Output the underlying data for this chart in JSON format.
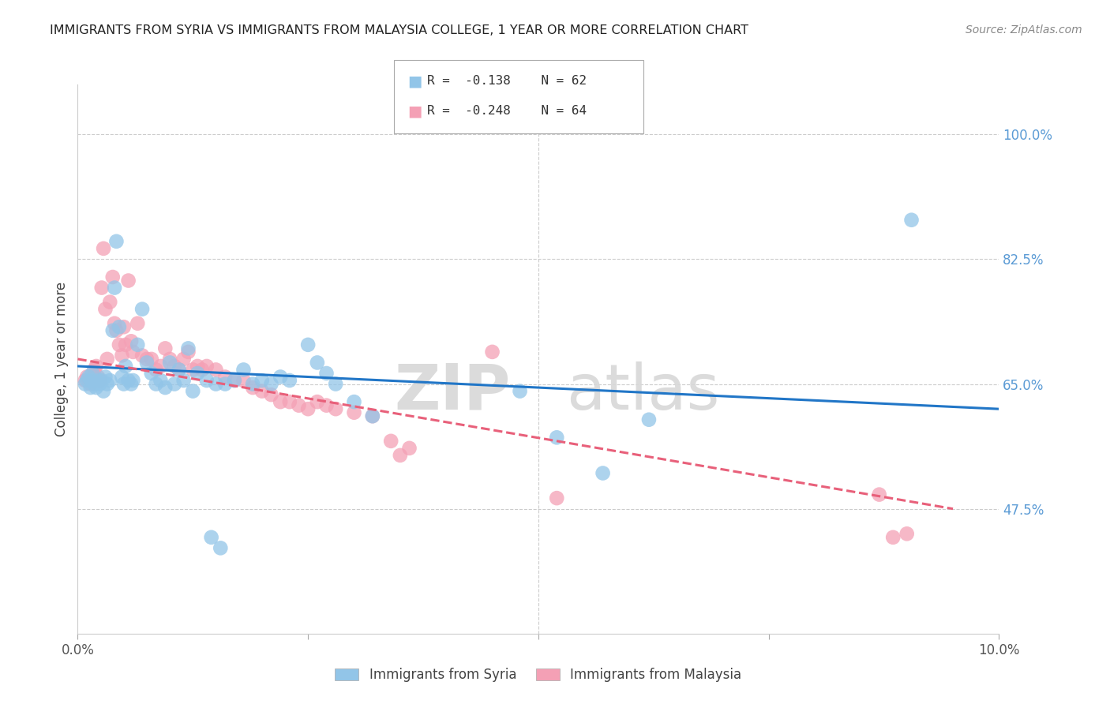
{
  "title": "IMMIGRANTS FROM SYRIA VS IMMIGRANTS FROM MALAYSIA COLLEGE, 1 YEAR OR MORE CORRELATION CHART",
  "source": "Source: ZipAtlas.com",
  "ylabel": "College, 1 year or more",
  "xlim": [
    0.0,
    10.0
  ],
  "ylim": [
    30.0,
    107.0
  ],
  "yticks": [
    47.5,
    65.0,
    82.5,
    100.0
  ],
  "xticks": [
    0.0,
    2.5,
    5.0,
    7.5,
    10.0
  ],
  "xtick_labels": [
    "0.0%",
    "",
    "",
    "",
    "10.0%"
  ],
  "ytick_labels": [
    "47.5%",
    "65.0%",
    "82.5%",
    "100.0%"
  ],
  "legend_r_syria": "-0.138",
  "legend_n_syria": "62",
  "legend_r_malaysia": "-0.248",
  "legend_n_malaysia": "64",
  "color_syria": "#92C5E8",
  "color_malaysia": "#F4A0B5",
  "color_line_syria": "#2176C7",
  "color_line_malaysia": "#E8607A",
  "color_ytick": "#5B9BD5",
  "watermark_zip": "ZIP",
  "watermark_atlas": "atlas",
  "syria_x": [
    0.08,
    0.1,
    0.12,
    0.14,
    0.15,
    0.16,
    0.18,
    0.2,
    0.22,
    0.24,
    0.26,
    0.28,
    0.3,
    0.32,
    0.35,
    0.38,
    0.4,
    0.42,
    0.45,
    0.48,
    0.5,
    0.52,
    0.55,
    0.58,
    0.6,
    0.65,
    0.7,
    0.75,
    0.8,
    0.85,
    0.9,
    0.95,
    1.0,
    1.05,
    1.1,
    1.15,
    1.2,
    1.3,
    1.4,
    1.5,
    1.6,
    1.7,
    1.8,
    1.9,
    2.0,
    2.1,
    2.2,
    2.3,
    2.5,
    2.6,
    2.7,
    2.8,
    3.0,
    3.2,
    4.8,
    5.2,
    5.7,
    6.2,
    9.05,
    1.25,
    1.45,
    1.55
  ],
  "syria_y": [
    65.0,
    65.5,
    66.0,
    64.5,
    65.5,
    66.5,
    65.0,
    64.5,
    65.5,
    65.0,
    65.5,
    64.0,
    66.0,
    65.0,
    65.5,
    72.5,
    78.5,
    85.0,
    73.0,
    66.0,
    65.0,
    67.5,
    65.5,
    65.0,
    65.5,
    70.5,
    75.5,
    68.0,
    66.5,
    65.0,
    65.5,
    64.5,
    68.0,
    65.0,
    67.0,
    65.5,
    70.0,
    66.5,
    65.5,
    65.0,
    65.0,
    65.5,
    67.0,
    65.0,
    65.5,
    65.0,
    66.0,
    65.5,
    70.5,
    68.0,
    66.5,
    65.0,
    62.5,
    60.5,
    64.0,
    57.5,
    52.5,
    60.0,
    88.0,
    64.0,
    43.5,
    42.0
  ],
  "malaysia_x": [
    0.08,
    0.1,
    0.12,
    0.14,
    0.16,
    0.18,
    0.2,
    0.22,
    0.24,
    0.26,
    0.28,
    0.3,
    0.32,
    0.35,
    0.38,
    0.4,
    0.42,
    0.45,
    0.48,
    0.5,
    0.52,
    0.55,
    0.58,
    0.6,
    0.65,
    0.7,
    0.75,
    0.8,
    0.85,
    0.9,
    0.95,
    1.0,
    1.05,
    1.1,
    1.15,
    1.2,
    1.25,
    1.3,
    1.35,
    1.4,
    1.5,
    1.6,
    1.7,
    1.8,
    1.9,
    2.0,
    2.1,
    2.2,
    2.3,
    2.4,
    2.5,
    2.6,
    2.7,
    2.8,
    3.0,
    3.2,
    3.4,
    3.5,
    3.6,
    4.5,
    5.2,
    8.7,
    8.85,
    9.0
  ],
  "malaysia_y": [
    65.5,
    66.0,
    65.5,
    65.0,
    65.5,
    67.0,
    67.5,
    66.0,
    65.5,
    78.5,
    84.0,
    75.5,
    68.5,
    76.5,
    80.0,
    73.5,
    72.5,
    70.5,
    69.0,
    73.0,
    70.5,
    79.5,
    71.0,
    69.5,
    73.5,
    69.0,
    68.5,
    68.5,
    67.0,
    67.5,
    70.0,
    68.5,
    67.5,
    67.0,
    68.5,
    69.5,
    67.0,
    67.5,
    67.0,
    67.5,
    67.0,
    66.0,
    65.5,
    65.5,
    64.5,
    64.0,
    63.5,
    62.5,
    62.5,
    62.0,
    61.5,
    62.5,
    62.0,
    61.5,
    61.0,
    60.5,
    57.0,
    55.0,
    56.0,
    69.5,
    49.0,
    49.5,
    43.5,
    44.0
  ],
  "syria_line_x": [
    0.0,
    10.0
  ],
  "syria_line_y": [
    67.5,
    61.5
  ],
  "malaysia_line_x": [
    0.0,
    9.5
  ],
  "malaysia_line_y": [
    68.5,
    47.5
  ]
}
